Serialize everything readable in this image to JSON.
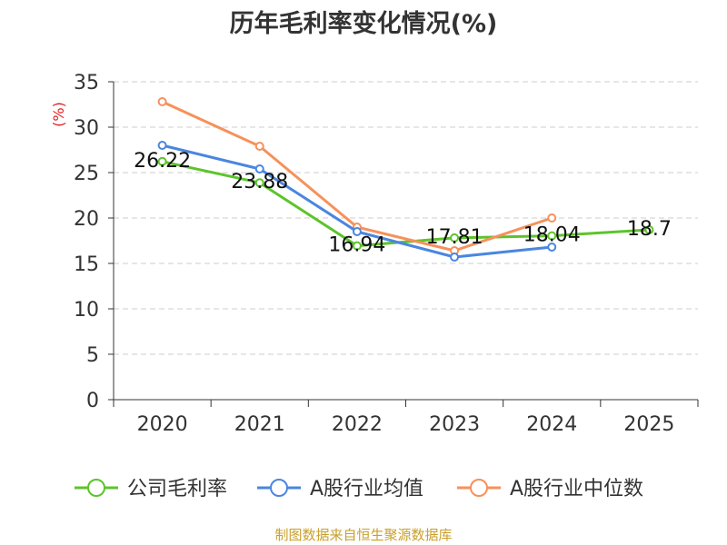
{
  "title": "历年毛利率变化情况(%)",
  "footer": "制图数据来自恒生聚源数据库",
  "chart_data": {
    "type": "line",
    "title": "历年毛利率变化情况(%)",
    "ylabel": "(%)",
    "xlabel": "",
    "categories": [
      "2020",
      "2021",
      "2022",
      "2023",
      "2024",
      "2025"
    ],
    "yticks": [
      "0",
      "5",
      "10",
      "15",
      "20",
      "25",
      "30",
      "35"
    ],
    "ylim": [
      0,
      35
    ],
    "grid": true,
    "legend_position": "bottom",
    "series": [
      {
        "name": "公司毛利率",
        "color": "#5cc42b",
        "values": [
          26.22,
          23.88,
          16.94,
          17.81,
          18.04,
          18.7
        ],
        "labels": [
          "26.22",
          "23.88",
          "16.94",
          "17.81",
          "18.04",
          "18.7"
        ]
      },
      {
        "name": "A股行业均值",
        "color": "#4a86e0",
        "values": [
          28.0,
          25.4,
          18.5,
          15.7,
          16.8,
          null
        ]
      },
      {
        "name": "A股行业中位数",
        "color": "#f6915a",
        "values": [
          32.8,
          27.9,
          19.0,
          16.4,
          20.0,
          null
        ]
      }
    ]
  }
}
